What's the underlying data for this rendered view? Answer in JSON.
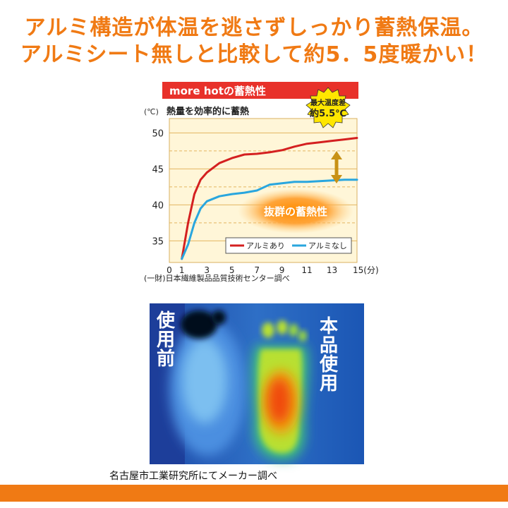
{
  "headline": {
    "line1": "アルミ構造が体温を逃さずしっかり蓄熱保温。",
    "line2": "アルミシート無しと比較して約5．5度暖かい！"
  },
  "chart_header": "more hotの蓄熱性",
  "chart_subtitle": "熱量を効率的に蓄熱",
  "badge": {
    "line1": "最大温度差",
    "line2": "約5.5℃"
  },
  "highlight": "抜群の蓄熱性",
  "source_note": "(一財)日本繊維製品品質技術センター調べ",
  "chart_data": {
    "type": "line",
    "title": "more hotの蓄熱性",
    "subtitle": "熱量を効率的に蓄熱",
    "ylabel": "(℃)",
    "xlabel": "(分)",
    "ylim": [
      32,
      52
    ],
    "xlim": [
      0,
      15
    ],
    "yticks": [
      35,
      40,
      45,
      50
    ],
    "xticks": [
      0,
      1,
      3,
      5,
      7,
      9,
      11,
      13,
      15
    ],
    "ytick_labels": [
      "35",
      "40",
      "45",
      "50"
    ],
    "xtick_labels": [
      "0",
      "1",
      "3",
      "5",
      "7",
      "9",
      "11",
      "13",
      "15(分)"
    ],
    "grid": true,
    "legend_position": "bottom-right",
    "series": [
      {
        "name": "アルミあり",
        "color": "#d42020",
        "x": [
          1,
          1.5,
          2,
          2.5,
          3,
          4,
          5,
          6,
          7,
          8,
          9,
          10,
          11,
          12,
          13,
          14,
          15
        ],
        "values": [
          32.5,
          37.5,
          41.5,
          43.5,
          44.5,
          45.8,
          46.5,
          47.0,
          47.1,
          47.3,
          47.6,
          48.1,
          48.5,
          48.7,
          48.9,
          49.1,
          49.3
        ]
      },
      {
        "name": "アルミなし",
        "color": "#29a6de",
        "x": [
          1,
          1.5,
          2,
          2.5,
          3,
          4,
          5,
          6,
          7,
          8,
          9,
          10,
          11,
          12,
          13,
          14,
          15
        ],
        "values": [
          32.5,
          34.5,
          37.5,
          39.5,
          40.5,
          41.2,
          41.5,
          41.7,
          42.0,
          42.8,
          43.0,
          43.2,
          43.2,
          43.3,
          43.4,
          43.5,
          43.5
        ]
      }
    ],
    "annotations": {
      "badge": "最大温度差 約5.5℃",
      "highlight": "抜群の蓄熱性"
    }
  },
  "thermal": {
    "label_before": "使用前",
    "label_after": "本品使用"
  },
  "caption": "名古屋市工業研究所にてメーカー調べ",
  "colors": {
    "accent_orange": "#f07a14",
    "header_red": "#e8312a",
    "plot_bg": "#fff6d8",
    "badge_yellow": "#ffe600"
  }
}
